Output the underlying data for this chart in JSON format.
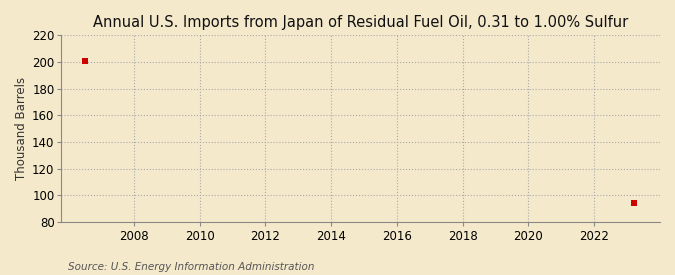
{
  "title": "Annual U.S. Imports from Japan of Residual Fuel Oil, 0.31 to 1.00% Sulfur",
  "ylabel": "Thousand Barrels",
  "source": "Source: U.S. Energy Information Administration",
  "background_color": "#f5e9cc",
  "plot_bg_color": "#f5e9cc",
  "grid_color": "#aaaaaa",
  "data_points": [
    {
      "year": 2006.5,
      "value": 201
    },
    {
      "year": 2023.2,
      "value": 94
    }
  ],
  "marker_color": "#cc0000",
  "marker_size": 4,
  "xlim": [
    2005.8,
    2024.0
  ],
  "ylim": [
    80,
    220
  ],
  "yticks": [
    80,
    100,
    120,
    140,
    160,
    180,
    200,
    220
  ],
  "xticks": [
    2008,
    2010,
    2012,
    2014,
    2016,
    2018,
    2020,
    2022
  ],
  "title_fontsize": 10.5,
  "axis_fontsize": 8.5,
  "tick_fontsize": 8.5,
  "source_fontsize": 7.5
}
